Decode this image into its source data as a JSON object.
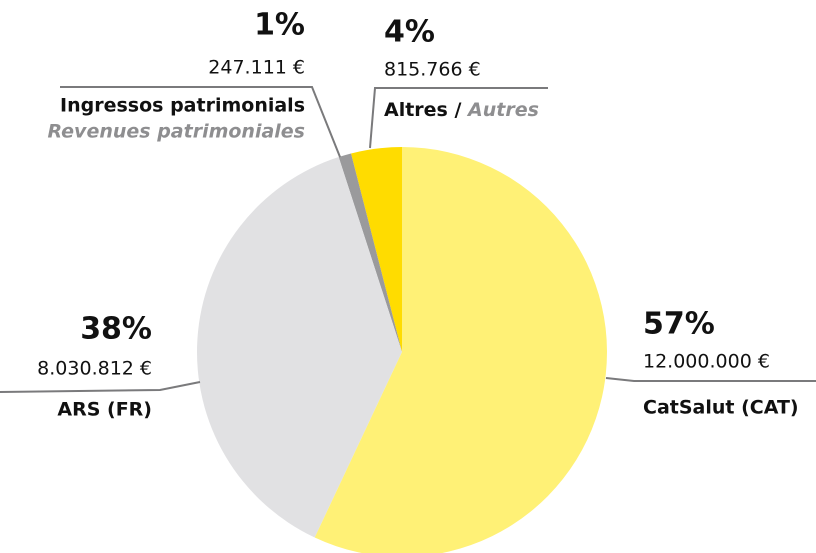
{
  "chart_data": {
    "type": "pie",
    "categories": [
      "CatSalut (CAT)",
      "ARS (FR)",
      "Ingressos patrimonials",
      "Altres /"
    ],
    "category_translations": [
      null,
      null,
      "Revenues patrimoniales",
      "Autres"
    ],
    "values": [
      57,
      38,
      1,
      4
    ],
    "value_labels": [
      "57%",
      "38%",
      "1%",
      "4%"
    ],
    "amounts": [
      "12.000.000 €",
      "8.030.812 €",
      "247.111 €",
      "815.766 €"
    ],
    "colors": [
      "#fff176",
      "#e1e1e3",
      "#9a9a9c",
      "#ffdc00"
    ]
  }
}
